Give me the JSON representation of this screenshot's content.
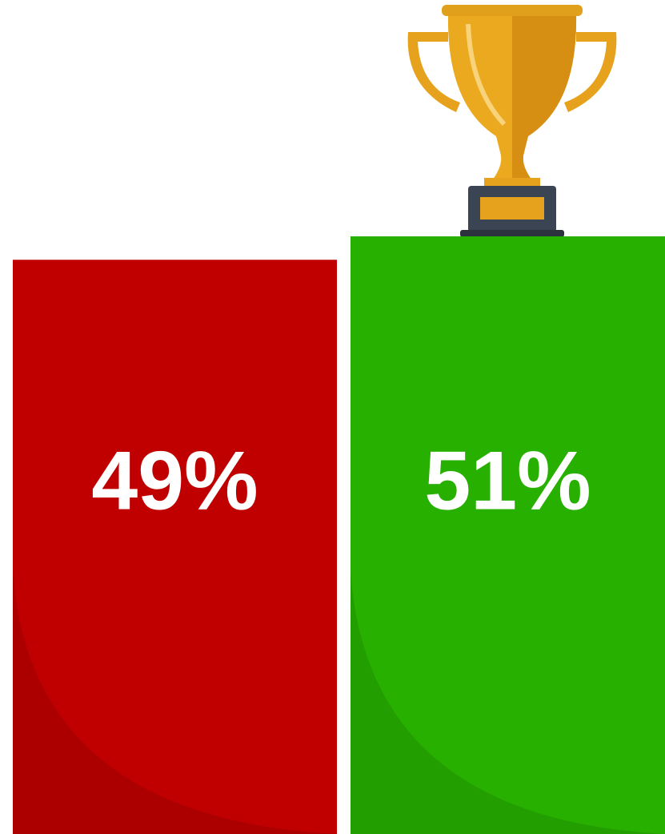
{
  "chart_data": {
    "type": "bar",
    "values": [
      49,
      51
    ],
    "value_labels": [
      "49%",
      "51%"
    ],
    "colors": [
      "#c00000",
      "#27b000"
    ]
  }
}
